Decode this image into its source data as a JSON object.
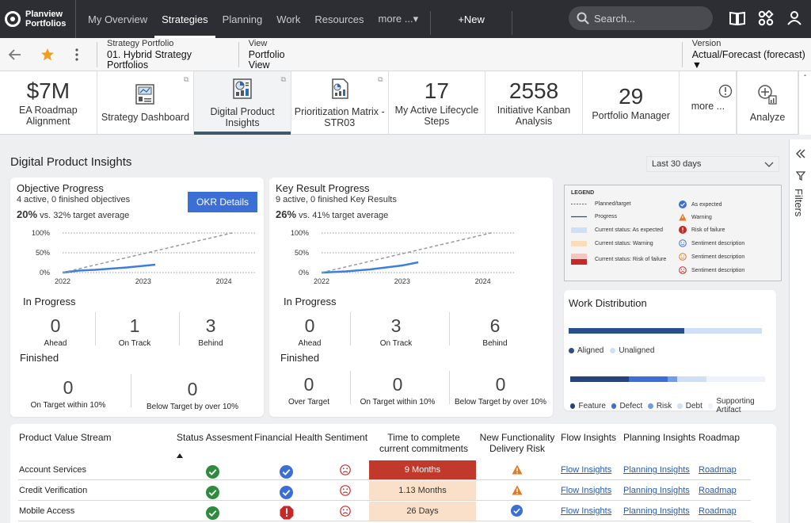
{
  "app": {
    "brand_line1": "Planview",
    "brand_line2": "Portfolios"
  },
  "nav": {
    "items": [
      "My Overview",
      "Strategies",
      "Planning",
      "Work",
      "Resources",
      "more ...▾"
    ],
    "active": "Strategies",
    "new_label": "+New",
    "search_placeholder": "Search..."
  },
  "breadcrumb": {
    "portfolio_label": "Strategy Portfolio",
    "portfolio_value": "01. Hybrid Strategy Portfolios",
    "view_label": "View",
    "view_value": "Portfolio View",
    "version_label": "Version",
    "version_value": "Actual/Forecast (forecast) ▼"
  },
  "tiles": [
    {
      "number": "$7M",
      "label": "EA Roadmap Alignment",
      "icon": null
    },
    {
      "number": null,
      "label": "Strategy Dashboard",
      "icon": "dashboard-icon"
    },
    {
      "number": null,
      "label": "Digital Product Insights",
      "icon": "insights-icon"
    },
    {
      "number": null,
      "label": "Prioritization Matrix - STR03",
      "icon": "matrix-icon"
    },
    {
      "number": "17",
      "label": "My Active Lifecycle Steps",
      "icon": null
    },
    {
      "number": "2558",
      "label": "Initiative Kanban Analysis",
      "icon": null
    },
    {
      "number": "29",
      "label": "Portfolio Manager",
      "icon": null
    },
    {
      "number": null,
      "label": "more ...",
      "icon": "info-icon"
    },
    {
      "number": null,
      "label": "Analyze",
      "icon": "analyze-icon"
    }
  ],
  "page": {
    "title": "Digital Product Insights",
    "range": "Last 30 days",
    "filters_label": "Filters"
  },
  "objective": {
    "title": "Objective Progress",
    "subtitle": "4 active, 0 finished objectives",
    "pct": "20%",
    "pct_suffix": "vs. 32% target average",
    "button": "OKR Details",
    "in_progress_label": "In Progress",
    "stats": [
      {
        "n": "0",
        "l": "Ahead"
      },
      {
        "n": "1",
        "l": "On Track"
      },
      {
        "n": "3",
        "l": "Behind"
      }
    ],
    "finished_label": "Finished",
    "finished": [
      {
        "n": "0",
        "l": "On Target within 10%"
      },
      {
        "n": "0",
        "l": "Below Target by over 10%"
      }
    ]
  },
  "keyresult": {
    "title": "Key Result Progress",
    "subtitle": "9 active, 0 finished Key Results",
    "pct": "26%",
    "pct_suffix": "vs. 41% target average",
    "in_progress_label": "In Progress",
    "stats": [
      {
        "n": "0",
        "l": "Ahead"
      },
      {
        "n": "3",
        "l": "On Track"
      },
      {
        "n": "6",
        "l": "Behind"
      }
    ],
    "finished_label": "Finished",
    "finished": [
      {
        "n": "0",
        "l": "Over Target"
      },
      {
        "n": "0",
        "l": "On Target within 10%"
      },
      {
        "n": "0",
        "l": "Below Target by over 10%"
      }
    ]
  },
  "chart_data": [
    {
      "type": "line",
      "x_ticks": [
        "2022",
        "2023",
        "2024"
      ],
      "y_ticks": [
        "100%",
        "50%",
        "0%"
      ],
      "ylim": [
        0,
        100
      ],
      "series": [
        {
          "name": "Progress",
          "x": [
            2022.0,
            2022.2,
            2022.4,
            2022.6,
            2022.8,
            2023.0,
            2023.15
          ],
          "values": [
            0,
            5,
            7,
            10,
            13,
            17,
            20
          ]
        },
        {
          "name": "Planned/target",
          "x": [
            2022.0,
            2024.1
          ],
          "values": [
            0,
            100
          ]
        }
      ]
    },
    {
      "type": "line",
      "x_ticks": [
        "2022",
        "2023",
        "2024"
      ],
      "y_ticks": [
        "100%",
        "50%",
        "0%"
      ],
      "ylim": [
        0,
        100
      ],
      "series": [
        {
          "name": "Progress",
          "x": [
            2022.0,
            2022.3,
            2022.6,
            2022.8,
            2023.0,
            2023.2
          ],
          "values": [
            0,
            3,
            8,
            13,
            18,
            26
          ]
        },
        {
          "name": "Planned/target",
          "x": [
            2022.0,
            2024.1
          ],
          "values": [
            0,
            100
          ]
        }
      ]
    }
  ],
  "legend": {
    "title": "LEGEND",
    "left": [
      "Planned/target",
      "Progress",
      "Current status: As expected",
      "Current status: Warning",
      "Current status: Risk of failure"
    ],
    "right": [
      "As expected",
      "Warning",
      "Risk of failure",
      "Sentiment description",
      "Sentiment description",
      "Sentiment description"
    ]
  },
  "work": {
    "title": "Work Distribution",
    "aligned_fraction": 0.6,
    "legend1": [
      "Aligned",
      "Unaligned"
    ],
    "legend2": [
      "Feature",
      "Defect",
      "Risk",
      "Debt",
      "Supporting Artifact"
    ],
    "mix_fractions": [
      0.3,
      0.2,
      0.05,
      0.15,
      0.3
    ]
  },
  "table": {
    "headers": [
      "Product Value Stream",
      "Status Assesment",
      "Financial Health",
      "Sentiment",
      "Time to complete current commitments",
      "New Functionality Delivery Risk",
      "Flow Insights",
      "Planning Insights",
      "Roadmap"
    ],
    "rows": [
      {
        "name": "Account Services",
        "time": "9 Months",
        "time_level": "high",
        "delivery": "warning",
        "financial": "ok",
        "flow": "Flow Insights",
        "planning": "Planning Insights",
        "roadmap": "Roadmap"
      },
      {
        "name": "Credit Verification",
        "time": "1.13 Months",
        "time_level": "low",
        "delivery": "warning",
        "financial": "ok",
        "flow": "Flow Insights",
        "planning": "Planning Insights",
        "roadmap": "Roadmap"
      },
      {
        "name": "Mobile Access",
        "time": "26 Days",
        "time_level": "low",
        "delivery": "ok",
        "financial": "risk",
        "flow": "Flow Insights",
        "planning": "Planning Insights",
        "roadmap": "Roadmap"
      }
    ]
  },
  "colors": {
    "accent": "#3c6fd6",
    "green": "#2e8b3e",
    "orange": "#e07b22",
    "red": "#c62828",
    "navy": "#2b4f8e"
  }
}
